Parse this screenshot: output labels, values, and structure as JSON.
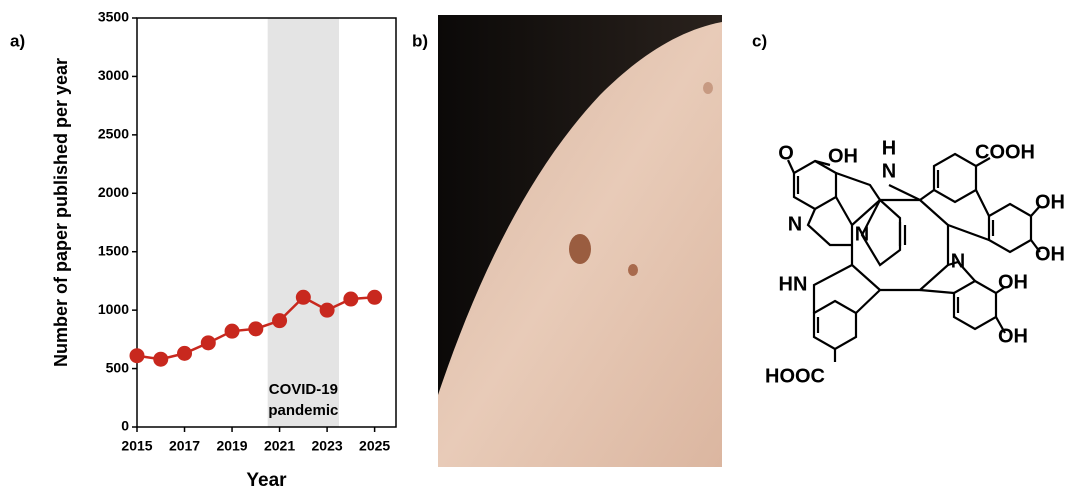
{
  "chart_data": {
    "type": "line",
    "panel_label": "a)",
    "xlabel": "Year",
    "ylabel": "Number of paper published per year",
    "x": [
      2015,
      2016,
      2017,
      2018,
      2019,
      2020,
      2021,
      2022,
      2023,
      2024,
      2025
    ],
    "values": [
      610,
      580,
      630,
      720,
      820,
      840,
      910,
      1110,
      1000,
      1095,
      1110
    ],
    "color": "#c8281e",
    "xlim": [
      2015,
      2025.9
    ],
    "ylim": [
      0,
      3500
    ],
    "xticks": [
      2015,
      2017,
      2019,
      2021,
      2023,
      2025
    ],
    "yticks": [
      0,
      500,
      1000,
      1500,
      2000,
      2500,
      3000,
      3500
    ],
    "shaded_region": {
      "x_range": [
        2020.5,
        2023.5
      ],
      "label": [
        "COVID-19",
        "pandemic"
      ],
      "color": "#e4e4e4"
    }
  },
  "photo": {
    "panel_label": "b)"
  },
  "structure": {
    "panel_label": "c)",
    "atom_labels": [
      "O",
      "OH",
      "H",
      "N",
      "COOH",
      "N",
      "N",
      "OH",
      "OH",
      "N",
      "HN",
      "OH",
      "OH",
      "HOOC"
    ]
  }
}
